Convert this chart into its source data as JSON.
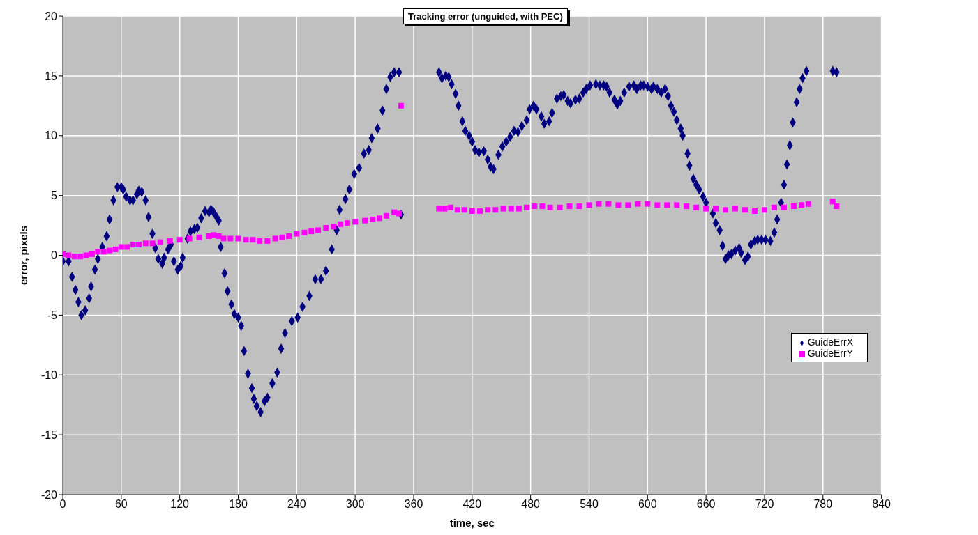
{
  "chart_data": {
    "type": "scatter",
    "title": "Tracking error (unguided, with PEC)",
    "xlabel": "time, sec",
    "ylabel": "error, pixels",
    "xlim": [
      0,
      840
    ],
    "xticks": [
      0,
      60,
      120,
      180,
      240,
      300,
      360,
      420,
      480,
      540,
      600,
      660,
      720,
      780,
      840
    ],
    "ylim": [
      -20,
      20
    ],
    "yticks": [
      -20,
      -15,
      -10,
      -5,
      0,
      5,
      10,
      15,
      20
    ],
    "grid": true,
    "legend": "right",
    "series": [
      {
        "name": "GuideErrX",
        "color": "#000080",
        "marker": "diamond",
        "x": [
          0,
          6,
          9.5,
          13,
          16,
          19,
          23,
          27,
          29,
          33,
          36,
          40.6,
          45,
          48,
          52,
          56,
          60,
          62,
          65,
          69,
          72,
          76,
          78,
          81,
          85,
          88,
          92,
          95,
          98,
          102,
          104,
          108,
          111,
          114,
          118,
          121,
          123,
          128,
          131,
          135,
          138,
          142,
          146,
          150,
          152,
          154,
          157,
          160,
          162,
          166,
          169,
          173,
          176,
          180,
          183,
          186,
          190,
          194,
          196,
          199,
          203,
          207,
          210,
          215,
          220,
          224,
          228,
          235,
          241,
          246,
          253,
          259,
          265,
          270,
          276,
          281,
          284,
          290,
          294,
          299,
          304,
          309,
          314,
          317,
          323,
          328,
          332,
          336,
          340,
          345,
          347,
          386,
          389,
          393,
          396,
          399,
          403,
          406,
          410,
          413,
          417,
          420,
          423,
          427,
          432,
          436,
          439,
          442,
          447,
          451,
          455,
          459,
          463,
          467,
          471,
          476,
          479,
          483,
          486,
          491,
          494,
          499,
          502,
          507,
          511,
          514,
          518,
          521,
          526,
          530,
          534,
          537,
          541,
          547,
          551,
          555,
          558,
          561,
          566,
          569,
          572,
          576,
          581,
          586,
          589,
          593,
          596,
          600,
          604,
          606,
          610,
          614,
          618,
          621,
          624,
          627,
          630,
          634,
          636,
          641,
          643,
          647,
          650,
          653,
          657,
          660,
          667,
          670,
          674,
          677,
          680,
          683,
          686,
          690,
          694,
          696,
          700,
          703,
          706,
          710,
          713,
          717,
          721,
          726,
          730,
          733,
          737,
          740,
          743,
          746,
          749,
          753,
          756,
          759,
          763,
          790,
          794
        ],
        "values": [
          -0.5,
          -0.5,
          -1.8,
          -2.9,
          -3.9,
          -5,
          -4.6,
          -3.6,
          -2.6,
          -1.2,
          -0.3,
          0.7,
          1.6,
          3,
          4.6,
          5.7,
          5.7,
          5.5,
          4.9,
          4.6,
          4.6,
          5.1,
          5.4,
          5.3,
          4.6,
          3.2,
          1.8,
          0.6,
          -0.3,
          -0.7,
          -0.2,
          0.5,
          0.9,
          -0.5,
          -1.2,
          -0.9,
          -0.2,
          1.4,
          2,
          2.2,
          2.3,
          3.1,
          3.7,
          3.6,
          3.8,
          3.7,
          3.3,
          2.9,
          0.7,
          -1.5,
          -3,
          -4.1,
          -4.9,
          -5.2,
          -5.9,
          -8,
          -9.9,
          -11.1,
          -12,
          -12.6,
          -13.1,
          -12.2,
          -11.9,
          -10.7,
          -9.8,
          -7.8,
          -6.5,
          -5.5,
          -5.2,
          -4.3,
          -3.4,
          -2,
          -2,
          -1.3,
          0.5,
          2.1,
          3.8,
          4.7,
          5.5,
          6.8,
          7.3,
          8.5,
          8.8,
          9.8,
          10.6,
          12.1,
          13.9,
          14.9,
          15.3,
          15.3,
          3.4,
          15.3,
          14.8,
          15,
          14.9,
          14.3,
          13.5,
          12.5,
          11.2,
          10.4,
          10,
          9.5,
          8.8,
          8.6,
          8.7,
          8,
          7.4,
          7.2,
          8.4,
          9.1,
          9.5,
          9.9,
          10.4,
          10.3,
          10.8,
          11.3,
          12.2,
          12.5,
          12.2,
          11.6,
          11,
          11.2,
          11.9,
          13.1,
          13.3,
          13.4,
          12.9,
          12.7,
          13,
          13.1,
          13.6,
          13.9,
          14.2,
          14.3,
          14.2,
          14.2,
          14.1,
          13.6,
          13,
          12.6,
          12.9,
          13.6,
          14.1,
          14.2,
          13.9,
          14.2,
          14.2,
          14.1,
          13.9,
          14.1,
          13.9,
          13.6,
          13.9,
          13.3,
          12.5,
          12,
          11.3,
          10.6,
          10,
          8.5,
          7.5,
          6.4,
          5.9,
          5.5,
          4.9,
          4.4,
          3.5,
          2.7,
          2.1,
          0.8,
          -0.3,
          0,
          0.1,
          0.4,
          0.6,
          0.2,
          -0.4,
          -0.1,
          0.9,
          1.2,
          1.3,
          1.3,
          1.3,
          1.2,
          1.9,
          3,
          4.4,
          5.9,
          7.6,
          9.2,
          11.1,
          12.8,
          13.9,
          14.8,
          15.4,
          15.4,
          15.3
        ]
      },
      {
        "name": "GuideErrY",
        "color": "#ff00ff",
        "marker": "square",
        "x": [
          0,
          6,
          12,
          18,
          24,
          30,
          36,
          42,
          48,
          54,
          60,
          66,
          72,
          78,
          85,
          92,
          100,
          110,
          120,
          130,
          140,
          150,
          155,
          160,
          165,
          172,
          180,
          188,
          195,
          202,
          210,
          218,
          225,
          232,
          240,
          248,
          255,
          262,
          270,
          278,
          285,
          292,
          300,
          310,
          318,
          325,
          332,
          340,
          345,
          347,
          386,
          392,
          398,
          405,
          412,
          420,
          428,
          436,
          444,
          452,
          460,
          468,
          476,
          484,
          492,
          500,
          510,
          520,
          530,
          540,
          550,
          560,
          570,
          580,
          590,
          600,
          610,
          620,
          630,
          640,
          650,
          660,
          670,
          680,
          690,
          700,
          710,
          720,
          730,
          740,
          750,
          758,
          765,
          790,
          794
        ],
        "values": [
          0.1,
          0,
          -0.1,
          -0.1,
          0,
          0.1,
          0.3,
          0.3,
          0.4,
          0.5,
          0.7,
          0.7,
          0.9,
          0.9,
          1,
          1,
          1.1,
          1.2,
          1.3,
          1.4,
          1.5,
          1.6,
          1.7,
          1.6,
          1.4,
          1.4,
          1.4,
          1.3,
          1.3,
          1.2,
          1.2,
          1.4,
          1.5,
          1.6,
          1.8,
          1.9,
          2,
          2.1,
          2.3,
          2.4,
          2.6,
          2.7,
          2.8,
          2.9,
          3,
          3.1,
          3.3,
          3.6,
          3.5,
          12.5,
          3.9,
          3.9,
          4,
          3.8,
          3.8,
          3.7,
          3.7,
          3.8,
          3.8,
          3.9,
          3.9,
          3.9,
          4,
          4.1,
          4.1,
          4,
          4,
          4.1,
          4.1,
          4.2,
          4.3,
          4.3,
          4.2,
          4.2,
          4.3,
          4.3,
          4.2,
          4.2,
          4.2,
          4.1,
          4,
          3.9,
          3.9,
          3.8,
          3.9,
          3.8,
          3.7,
          3.8,
          4,
          4,
          4.1,
          4.2,
          4.3,
          4.5,
          4.1
        ]
      }
    ]
  }
}
